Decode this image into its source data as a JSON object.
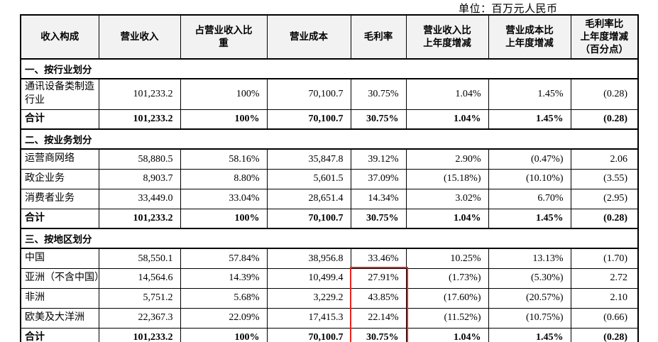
{
  "unit_label": "单位：百万元人民币",
  "colors": {
    "header_bg": "#f2f2f2",
    "border": "#000000",
    "highlight": "#e8251f"
  },
  "table": {
    "columns": [
      "收入构成",
      "营业收入",
      "占营业收入比\n重",
      "营业成本",
      "毛利率",
      "营业收入比\n上年度增减",
      "营业成本比\n上年度增减",
      "毛利率比\n上年度增减\n（百分点）"
    ],
    "sections": [
      {
        "title": "一、按行业划分",
        "rows": [
          {
            "label": "通讯设备类制造\n行业",
            "total": false,
            "values": [
              "101,233.2",
              "100%",
              "70,100.7",
              "30.75%",
              "1.04%",
              "1.45%",
              "(0.28)"
            ]
          },
          {
            "label": "合计",
            "total": true,
            "values": [
              "101,233.2",
              "100%",
              "70,100.7",
              "30.75%",
              "1.04%",
              "1.45%",
              "(0.28)"
            ]
          }
        ]
      },
      {
        "title": "二、按业务划分",
        "rows": [
          {
            "label": "运营商网络",
            "total": false,
            "values": [
              "58,880.5",
              "58.16%",
              "35,847.8",
              "39.12%",
              "2.90%",
              "(0.47%)",
              "2.06"
            ]
          },
          {
            "label": "政企业务",
            "total": false,
            "values": [
              "8,903.7",
              "8.80%",
              "5,601.5",
              "37.09%",
              "(15.18%)",
              "(10.10%)",
              "(3.55)"
            ]
          },
          {
            "label": "消费者业务",
            "total": false,
            "values": [
              "33,449.0",
              "33.04%",
              "28,651.4",
              "14.34%",
              "3.02%",
              "6.70%",
              "(2.95)"
            ]
          },
          {
            "label": "合计",
            "total": true,
            "values": [
              "101,233.2",
              "100%",
              "70,100.7",
              "30.75%",
              "1.04%",
              "1.45%",
              "(0.28)"
            ]
          }
        ]
      },
      {
        "title": "三、按地区划分",
        "rows": [
          {
            "label": "中国",
            "total": false,
            "values": [
              "58,550.1",
              "57.84%",
              "38,956.8",
              "33.46%",
              "10.25%",
              "13.13%",
              "(1.70)"
            ]
          },
          {
            "label": "亚洲（不含中国）",
            "total": false,
            "values": [
              "14,564.6",
              "14.39%",
              "10,499.4",
              "27.91%",
              "(1.73%)",
              "(5.30%)",
              "2.72"
            ]
          },
          {
            "label": "非洲",
            "total": false,
            "values": [
              "5,751.2",
              "5.68%",
              "3,229.2",
              "43.85%",
              "(17.60%)",
              "(20.57%)",
              "2.10"
            ]
          },
          {
            "label": "欧美及大洋洲",
            "total": false,
            "values": [
              "22,367.3",
              "22.09%",
              "17,415.3",
              "22.14%",
              "(11.52%)",
              "(10.75%)",
              "(0.66)"
            ]
          },
          {
            "label": "合计",
            "total": true,
            "values": [
              "101,233.2",
              "100%",
              "70,100.7",
              "30.75%",
              "1.04%",
              "1.45%",
              "(0.28)"
            ]
          }
        ]
      }
    ]
  },
  "highlight": {
    "description": "red box over 毛利率 column values 27.91%, 43.85%, 22.14%, 30.75%",
    "section_index": 2,
    "row_start": 1,
    "row_end": 4,
    "value_index": 3,
    "color": "#e8251f"
  }
}
